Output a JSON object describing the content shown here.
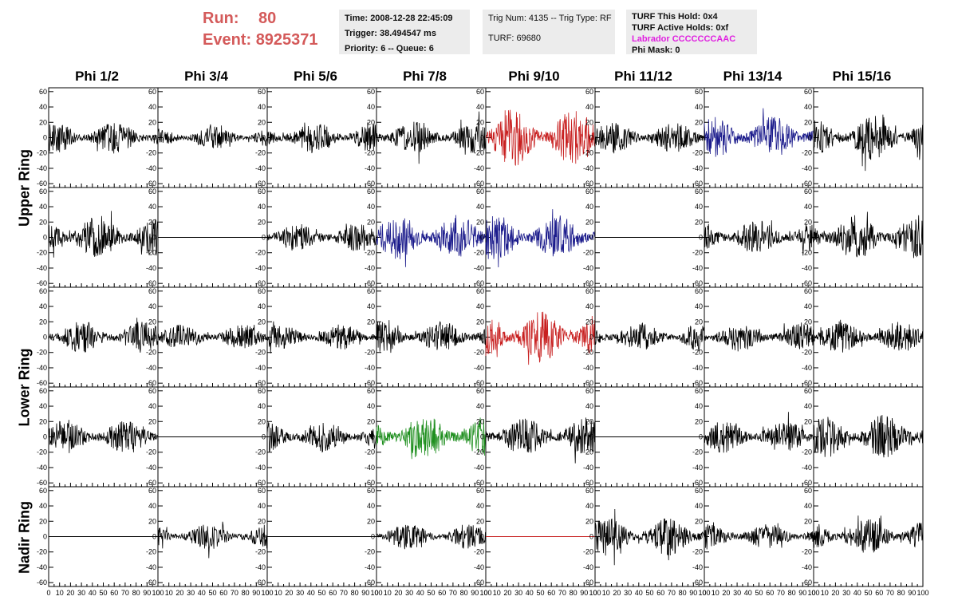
{
  "header": {
    "run_label": "Run:",
    "run_value": "80",
    "event_label": "Event:",
    "event_value": "8925371"
  },
  "info_time": {
    "time": "Time: 2008-12-28 22:45:09",
    "trigger": "Trigger: 38.494547 ms",
    "priority": "Priority: 6 -- Queue: 6"
  },
  "info_trig": {
    "trig": "Trig Num: 4135 -- Trig Type: RF",
    "turf": "TURF: 69680"
  },
  "info_turf": {
    "this_hold": "TURF This Hold: 0x4",
    "active_holds": "TURF Active Holds: 0xf",
    "labrador": "Labrador CCCCCCCAAC",
    "phi_mask": "Phi Mask: 0"
  },
  "columns": [
    "Phi 1/2",
    "Phi 3/4",
    "Phi 5/6",
    "Phi 7/8",
    "Phi 9/10",
    "Phi 11/12",
    "Phi 13/14",
    "Phi 15/16"
  ],
  "rows": [
    "Upper Ring",
    "Lower Ring",
    "Nadir Ring"
  ],
  "colors": {
    "black": "#000000",
    "red": "#c82020",
    "blue": "#1c1c8c",
    "green": "#1f8f1f",
    "title_red": "#d45a5a",
    "labrador_magenta": "#e020e0"
  },
  "chart_data": {
    "type": "line",
    "xlim": [
      0,
      100
    ],
    "ylim": [
      -65,
      65
    ],
    "x_ticks": [
      0,
      10,
      20,
      30,
      40,
      50,
      60,
      70,
      80,
      90,
      100
    ],
    "y_ticks": [
      -60,
      -40,
      -20,
      0,
      20,
      40,
      60
    ],
    "panel_rows": 5,
    "panel_cols": 8,
    "panels": [
      [
        {
          "amp": 10,
          "color": "black",
          "seed": 1
        },
        {
          "amp": 7,
          "color": "black",
          "seed": 2
        },
        {
          "amp": 10,
          "color": "black",
          "seed": 3
        },
        {
          "amp": 10,
          "color": "black",
          "seed": 4
        },
        {
          "amp": 18,
          "color": "red",
          "seed": 5
        },
        {
          "amp": 10,
          "color": "black",
          "seed": 6
        },
        {
          "amp": 14,
          "color": "blue",
          "seed": 7
        },
        {
          "amp": 14,
          "color": "black",
          "seed": 8
        }
      ],
      [
        {
          "amp": 14,
          "color": "black",
          "seed": 9
        },
        {
          "amp": 0,
          "color": "black",
          "seed": 10
        },
        {
          "amp": 9,
          "color": "black",
          "seed": 11
        },
        {
          "amp": 14,
          "color": "blue",
          "seed": 12
        },
        {
          "amp": 14,
          "color": "blue",
          "seed": 13
        },
        {
          "amp": 0,
          "color": "black",
          "seed": 14
        },
        {
          "amp": 11,
          "color": "black",
          "seed": 15
        },
        {
          "amp": 14,
          "color": "black",
          "seed": 16
        }
      ],
      [
        {
          "amp": 10,
          "color": "black",
          "seed": 17
        },
        {
          "amp": 8,
          "color": "black",
          "seed": 18
        },
        {
          "amp": 8,
          "color": "black",
          "seed": 19
        },
        {
          "amp": 10,
          "color": "black",
          "seed": 20
        },
        {
          "amp": 16,
          "color": "red",
          "seed": 21
        },
        {
          "amp": 9,
          "color": "black",
          "seed": 22
        },
        {
          "amp": 9,
          "color": "black",
          "seed": 23
        },
        {
          "amp": 10,
          "color": "black",
          "seed": 24
        }
      ],
      [
        {
          "amp": 11,
          "color": "black",
          "seed": 25
        },
        {
          "amp": 0,
          "color": "black",
          "seed": 26
        },
        {
          "amp": 10,
          "color": "black",
          "seed": 27
        },
        {
          "amp": 14,
          "color": "green",
          "seed": 28
        },
        {
          "amp": 12,
          "color": "black",
          "seed": 29
        },
        {
          "amp": 0,
          "color": "black",
          "seed": 30
        },
        {
          "amp": 10,
          "color": "black",
          "seed": 31
        },
        {
          "amp": 14,
          "color": "black",
          "seed": 32
        }
      ],
      [
        {
          "amp": 0,
          "color": "black",
          "seed": 33
        },
        {
          "amp": 8,
          "color": "black",
          "seed": 34
        },
        {
          "amp": 0,
          "color": "black",
          "seed": 35
        },
        {
          "amp": 8,
          "color": "black",
          "seed": 36
        },
        {
          "amp": 0,
          "color": "red",
          "seed": 37
        },
        {
          "amp": 12,
          "color": "black",
          "seed": 38
        },
        {
          "amp": 8,
          "color": "black",
          "seed": 39
        },
        {
          "amp": 11,
          "color": "black",
          "seed": 40
        }
      ]
    ]
  }
}
